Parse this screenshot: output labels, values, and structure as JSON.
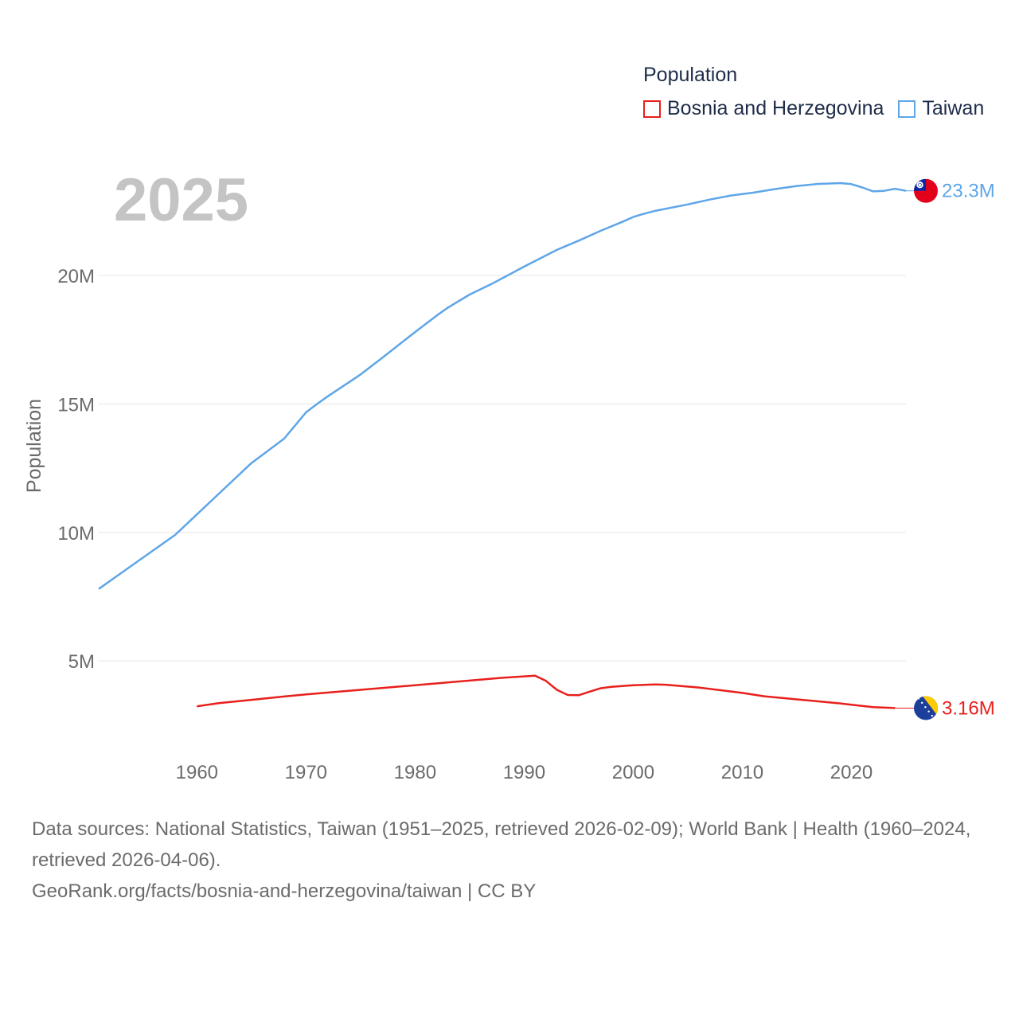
{
  "colors": {
    "bosnia": "#e8201c",
    "taiwan": "#5ea6e8",
    "grid": "#e6e6e6",
    "tick": "#6b6b6b"
  },
  "legend": {
    "title": "Population",
    "items": [
      {
        "label": "Bosnia and Herzegovina",
        "color": "#e8201c"
      },
      {
        "label": "Taiwan",
        "color": "#5ea6e8"
      }
    ]
  },
  "year_label": "2025",
  "chart_data": {
    "type": "line",
    "title": "",
    "xlabel": "",
    "ylabel": "Population",
    "xlim": [
      1951,
      2025
    ],
    "ylim": [
      1500000,
      24500000
    ],
    "xticks": [
      1960,
      1970,
      1980,
      1990,
      2000,
      2010,
      2020
    ],
    "xtick_labels": [
      "1960",
      "1970",
      "1980",
      "1990",
      "2000",
      "2010",
      "2020"
    ],
    "yticks": [
      5000000,
      10000000,
      15000000,
      20000000
    ],
    "ytick_labels": [
      "5M",
      "10M",
      "15M",
      "20M"
    ],
    "series": [
      {
        "name": "Taiwan",
        "end_label": "23.3M",
        "flag": "taiwan-flag-icon",
        "x": [
          1951,
          1953,
          1955,
          1958,
          1960,
          1962,
          1965,
          1968,
          1970,
          1971,
          1972,
          1975,
          1977,
          1980,
          1982,
          1983,
          1985,
          1987,
          1990,
          1993,
          1995,
          1997,
          1999,
          2000,
          2001,
          2002,
          2005,
          2007,
          2009,
          2011,
          2013,
          2015,
          2017,
          2019,
          2020,
          2021,
          2022,
          2023,
          2024,
          2025
        ],
        "values": [
          7800000,
          8400000,
          9000000,
          9900000,
          10700000,
          11500000,
          12700000,
          13650000,
          14675000,
          15000000,
          15300000,
          16150000,
          16800000,
          17800000,
          18450000,
          18750000,
          19260000,
          19670000,
          20350000,
          21000000,
          21360000,
          21740000,
          22090000,
          22280000,
          22410000,
          22520000,
          22770000,
          22960000,
          23120000,
          23230000,
          23370000,
          23490000,
          23570000,
          23600000,
          23560000,
          23430000,
          23280000,
          23300000,
          23380000,
          23300000
        ]
      },
      {
        "name": "Bosnia and Herzegovina",
        "end_label": "3.16M",
        "flag": "bosnia-flag-icon",
        "x": [
          1960,
          1962,
          1965,
          1968,
          1970,
          1975,
          1980,
          1985,
          1988,
          1991,
          1992,
          1993,
          1994,
          1995,
          1996,
          1997,
          1998,
          2000,
          2002,
          2003,
          2006,
          2010,
          2012,
          2015,
          2019,
          2020,
          2022,
          2024
        ],
        "values": [
          3230000,
          3350000,
          3480000,
          3610000,
          3690000,
          3870000,
          4050000,
          4230000,
          4340000,
          4420000,
          4220000,
          3870000,
          3670000,
          3660000,
          3800000,
          3930000,
          3990000,
          4050000,
          4080000,
          4070000,
          3960000,
          3750000,
          3620000,
          3500000,
          3340000,
          3290000,
          3200000,
          3160000
        ]
      }
    ]
  },
  "footer": {
    "line1": "Data sources: National Statistics, Taiwan (1951–2025, retrieved 2026-02-09); World Bank | Health (1960–2024, retrieved 2026-04-06).",
    "line2": "GeoRank.org/facts/bosnia-and-herzegovina/taiwan | CC BY"
  }
}
